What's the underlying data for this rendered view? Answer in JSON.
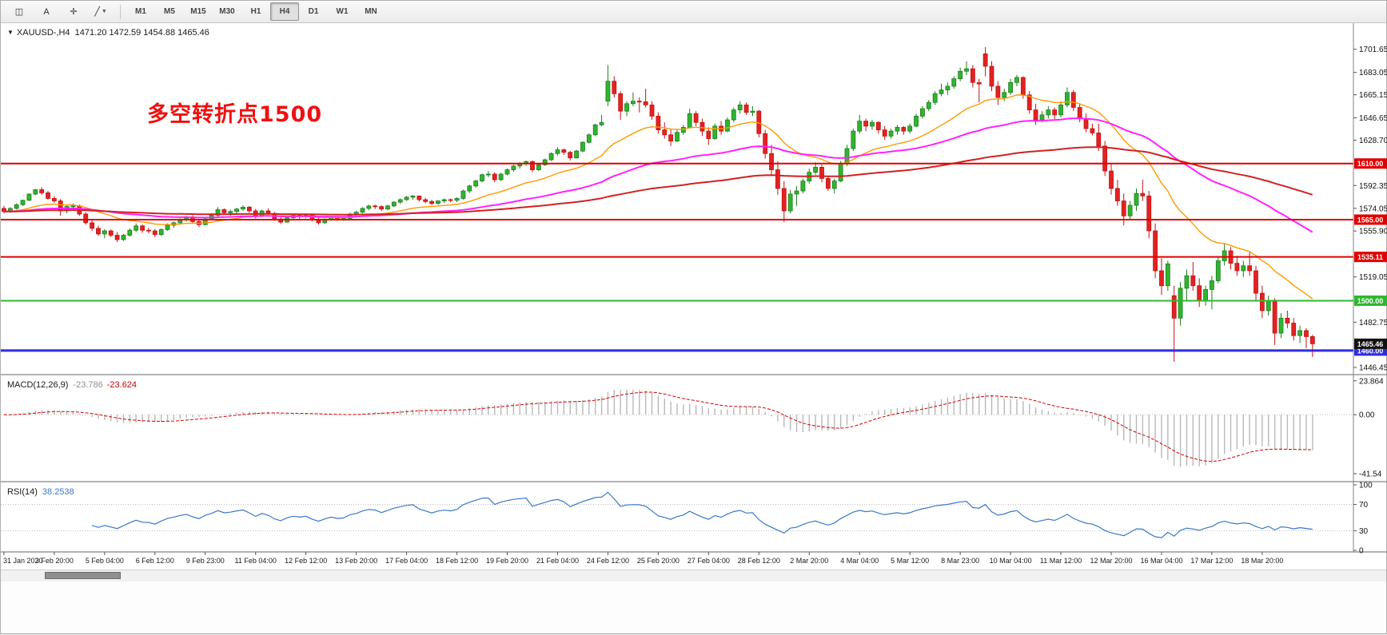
{
  "toolbar": {
    "tool_icons": [
      {
        "name": "chart-mode-icon",
        "glyph": "◫",
        "dropdown": false
      },
      {
        "name": "text-label-icon",
        "glyph": "A",
        "dropdown": false
      },
      {
        "name": "crosshair-icon",
        "glyph": "✛",
        "dropdown": false
      },
      {
        "name": "line-styles-icon",
        "glyph": "╱",
        "dropdown": true
      }
    ],
    "timeframes": [
      "M1",
      "M5",
      "M15",
      "M30",
      "H1",
      "H4",
      "D1",
      "W1",
      "MN"
    ],
    "active_timeframe": "H4"
  },
  "chart_data": {
    "type": "candlestick",
    "header": {
      "symbol": "XAUUSD-,H4",
      "ohlc": "1471.20 1472.59 1454.88 1465.46"
    },
    "annotation": {
      "text": "多空转折点1500",
      "color": "#f01010"
    },
    "ylim": [
      1442,
      1720
    ],
    "y_ticks": [
      "1701.65",
      "1683.05",
      "1665.15",
      "1646.65",
      "1628.70",
      "1592.35",
      "1574.05",
      "1555.90",
      "1519.05",
      "1482.75",
      "1446.45"
    ],
    "x_labels": [
      "31 Jan 2020",
      "3 Feb 20:00",
      "5 Feb 04:00",
      "6 Feb 12:00",
      "9 Feb 23:00",
      "11 Feb 04:00",
      "12 Feb 12:00",
      "13 Feb 20:00",
      "17 Feb 04:00",
      "18 Feb 12:00",
      "19 Feb 20:00",
      "21 Feb 04:00",
      "24 Feb 12:00",
      "25 Feb 20:00",
      "27 Feb 04:00",
      "28 Feb 12:00",
      "2 Mar 20:00",
      "4 Mar 04:00",
      "5 Mar 12:00",
      "8 Mar 23:00",
      "10 Mar 04:00",
      "11 Mar 12:00",
      "12 Mar 20:00",
      "16 Mar 04:00",
      "17 Mar 12:00",
      "18 Mar 20:00"
    ],
    "bars_per_label": 8,
    "up_color": "#2fb52f",
    "up_border": "#1e7d1e",
    "down_color": "#e32222",
    "down_border": "#c01414",
    "moving_averages": [
      {
        "name": "fast-ma",
        "period": 20,
        "color": "#ff9900",
        "width": 1.4
      },
      {
        "name": "mid-ma",
        "period": 60,
        "color": "#ff22ff",
        "width": 2
      },
      {
        "name": "slow-ma",
        "period": 150,
        "color": "#d42020",
        "width": 2
      }
    ],
    "levels": [
      {
        "price": 1610.0,
        "label": "1610.00",
        "color": "#e00000",
        "width": 2
      },
      {
        "price": 1565.0,
        "label": "1565.00",
        "color": "#e00000",
        "width": 2
      },
      {
        "price": 1535.11,
        "label": "1535.11",
        "color": "#e00000",
        "width": 2
      },
      {
        "price": 1500.0,
        "label": "1500.00",
        "color": "#2db82d",
        "width": 2
      },
      {
        "price": 1460.0,
        "label": "1460.00",
        "color": "#2d2de0",
        "width": 3
      }
    ],
    "current_price": {
      "value": 1465.46,
      "label": "1465.46",
      "badge_color": "#111111"
    },
    "indicators": [
      {
        "name": "MACD",
        "label": "MACD(12,26,9)",
        "value_main": "-23.786",
        "value_signal": "-23.624",
        "axis_labels": [
          "23.864",
          "0.00",
          "-41.54"
        ],
        "ylim": [
          -46,
          26
        ],
        "histogram_color": "#b8b8b8",
        "signal_color": "#d00000"
      },
      {
        "name": "RSI",
        "label": "RSI(14)",
        "value": "38.2538",
        "axis_labels": [
          "100",
          "70",
          "30",
          "0"
        ],
        "levels": [
          70,
          30
        ],
        "ylim": [
          0,
          100
        ],
        "line_color": "#3c78c8"
      }
    ],
    "candles": [
      [
        1574,
        1576,
        1570,
        1571.5
      ],
      [
        1571.5,
        1575,
        1570.5,
        1574
      ],
      [
        1574,
        1578,
        1573,
        1577
      ],
      [
        1577,
        1581,
        1576,
        1580.5
      ],
      [
        1580.5,
        1586,
        1580,
        1585.5
      ],
      [
        1585.5,
        1589.5,
        1584.5,
        1589
      ],
      [
        1589,
        1591,
        1585,
        1586.5
      ],
      [
        1586.5,
        1588,
        1581,
        1582
      ],
      [
        1582,
        1584,
        1578.5,
        1580
      ],
      [
        1580,
        1581.5,
        1568,
        1572
      ],
      [
        1572,
        1577,
        1570,
        1575.5
      ],
      [
        1575.5,
        1578,
        1573,
        1576
      ],
      [
        1576,
        1577,
        1568,
        1569.5
      ],
      [
        1569.5,
        1571,
        1561,
        1562.5
      ],
      [
        1562.5,
        1564.5,
        1556,
        1558
      ],
      [
        1558,
        1560,
        1552,
        1553.5
      ],
      [
        1553.5,
        1557.5,
        1550,
        1556
      ],
      [
        1556,
        1557,
        1551,
        1552.5
      ],
      [
        1552.5,
        1555,
        1547,
        1549
      ],
      [
        1549,
        1553.5,
        1548,
        1552.5
      ],
      [
        1552.5,
        1558,
        1551.5,
        1556.5
      ],
      [
        1556.5,
        1562,
        1555,
        1560
      ],
      [
        1560,
        1561,
        1554.5,
        1556.5
      ],
      [
        1556.5,
        1558.5,
        1554,
        1556
      ],
      [
        1556,
        1557.5,
        1551,
        1553
      ],
      [
        1553,
        1558,
        1552,
        1557
      ],
      [
        1557,
        1562,
        1556,
        1560.5
      ],
      [
        1560.5,
        1563.5,
        1558.5,
        1562.5
      ],
      [
        1562.5,
        1566,
        1561,
        1565
      ],
      [
        1565,
        1568,
        1563.5,
        1566.5
      ],
      [
        1566.5,
        1568.5,
        1562,
        1563.5
      ],
      [
        1563.5,
        1565,
        1559,
        1561
      ],
      [
        1561,
        1566.5,
        1560.5,
        1565.5
      ],
      [
        1565.5,
        1570,
        1564.5,
        1568.5
      ],
      [
        1568.5,
        1575,
        1567.5,
        1573
      ],
      [
        1573,
        1574,
        1569,
        1570.5
      ],
      [
        1570.5,
        1573,
        1568,
        1571.5
      ],
      [
        1571.5,
        1574.5,
        1570,
        1573.5
      ],
      [
        1573.5,
        1576.5,
        1572,
        1575
      ],
      [
        1575,
        1576,
        1570.5,
        1572
      ],
      [
        1572,
        1573.5,
        1566,
        1568
      ],
      [
        1568,
        1573,
        1567,
        1572
      ],
      [
        1572,
        1574,
        1569,
        1570
      ],
      [
        1570,
        1571,
        1564,
        1565.5
      ],
      [
        1565.5,
        1567,
        1561.5,
        1563
      ],
      [
        1563,
        1567.5,
        1562.5,
        1566.5
      ],
      [
        1566.5,
        1569.5,
        1565,
        1568.5
      ],
      [
        1568.5,
        1569.5,
        1565.5,
        1567.5
      ],
      [
        1567.5,
        1570,
        1566,
        1568.5
      ],
      [
        1568.5,
        1569,
        1563.5,
        1565
      ],
      [
        1565,
        1566.5,
        1561,
        1562.5
      ],
      [
        1562.5,
        1566,
        1561.5,
        1565
      ],
      [
        1565,
        1568,
        1564,
        1567
      ],
      [
        1567,
        1568,
        1564,
        1565.5
      ],
      [
        1565.5,
        1567,
        1564,
        1566
      ],
      [
        1566,
        1570.5,
        1565,
        1569.5
      ],
      [
        1569.5,
        1572,
        1568,
        1571
      ],
      [
        1571,
        1575,
        1570,
        1574
      ],
      [
        1574,
        1577,
        1572.5,
        1576
      ],
      [
        1576,
        1577,
        1573.5,
        1575.5
      ],
      [
        1575.5,
        1576.5,
        1572,
        1573.5
      ],
      [
        1573.5,
        1577,
        1572.5,
        1576
      ],
      [
        1576,
        1580,
        1575,
        1579
      ],
      [
        1579,
        1582,
        1577.5,
        1581
      ],
      [
        1581,
        1584,
        1580,
        1583
      ],
      [
        1583,
        1584.5,
        1581,
        1584
      ],
      [
        1584,
        1584,
        1579.5,
        1581
      ],
      [
        1581,
        1582.5,
        1578,
        1579.5
      ],
      [
        1579.5,
        1581,
        1576.5,
        1578
      ],
      [
        1578,
        1580.5,
        1577,
        1580
      ],
      [
        1580,
        1582,
        1578.5,
        1581
      ],
      [
        1581,
        1582,
        1579,
        1580.5
      ],
      [
        1580.5,
        1583,
        1579,
        1582
      ],
      [
        1582,
        1589,
        1581,
        1588
      ],
      [
        1588,
        1593,
        1586.5,
        1592
      ],
      [
        1592,
        1597,
        1590.5,
        1596
      ],
      [
        1596,
        1602,
        1595,
        1601
      ],
      [
        1601,
        1604,
        1599,
        1601.5
      ],
      [
        1601.5,
        1603,
        1595,
        1597
      ],
      [
        1597,
        1602.5,
        1596,
        1601.5
      ],
      [
        1601.5,
        1606,
        1600.5,
        1605
      ],
      [
        1605,
        1609,
        1603.5,
        1608
      ],
      [
        1608,
        1611,
        1606,
        1610
      ],
      [
        1610,
        1612.5,
        1608,
        1611.5
      ],
      [
        1611.5,
        1612.5,
        1603,
        1605
      ],
      [
        1605,
        1610,
        1604,
        1609
      ],
      [
        1609,
        1614,
        1608,
        1613
      ],
      [
        1613,
        1619,
        1612,
        1618
      ],
      [
        1618,
        1623,
        1616.5,
        1621
      ],
      [
        1621,
        1622,
        1617,
        1619
      ],
      [
        1619,
        1620,
        1612.5,
        1614.5
      ],
      [
        1614.5,
        1621,
        1614,
        1620
      ],
      [
        1620,
        1628,
        1619,
        1627
      ],
      [
        1627,
        1634,
        1626,
        1633
      ],
      [
        1633,
        1642,
        1632,
        1641
      ],
      [
        1641,
        1649,
        1640,
        1643
      ],
      [
        1660,
        1689,
        1656,
        1676
      ],
      [
        1676,
        1680,
        1663,
        1666
      ],
      [
        1666,
        1668,
        1645,
        1652
      ],
      [
        1652,
        1660,
        1648,
        1658
      ],
      [
        1658,
        1667,
        1656,
        1660
      ],
      [
        1660,
        1663,
        1651,
        1659.5
      ],
      [
        1659.5,
        1670,
        1655,
        1657
      ],
      [
        1657,
        1660,
        1645,
        1648
      ],
      [
        1648,
        1651,
        1634,
        1637
      ],
      [
        1637,
        1643,
        1630,
        1633
      ],
      [
        1633,
        1638,
        1624,
        1628
      ],
      [
        1628,
        1637,
        1627,
        1635
      ],
      [
        1635,
        1641,
        1633,
        1639
      ],
      [
        1639,
        1654,
        1638,
        1650
      ],
      [
        1650,
        1652,
        1640,
        1643
      ],
      [
        1643,
        1646,
        1632,
        1636
      ],
      [
        1636,
        1639,
        1625,
        1630
      ],
      [
        1630,
        1642,
        1629,
        1640
      ],
      [
        1640,
        1644,
        1633,
        1636
      ],
      [
        1636,
        1647,
        1635,
        1645
      ],
      [
        1645,
        1655,
        1643,
        1653
      ],
      [
        1653,
        1660,
        1650,
        1657
      ],
      [
        1657,
        1659,
        1649,
        1651
      ],
      [
        1651,
        1656,
        1648,
        1652
      ],
      [
        1652,
        1653,
        1631,
        1634
      ],
      [
        1634,
        1637,
        1614,
        1618
      ],
      [
        1618,
        1625,
        1600,
        1605
      ],
      [
        1605,
        1612,
        1585,
        1590
      ],
      [
        1590,
        1596,
        1563,
        1572
      ],
      [
        1572,
        1589,
        1570,
        1585.5
      ],
      [
        1585.5,
        1592,
        1576,
        1588
      ],
      [
        1588,
        1598,
        1586,
        1596
      ],
      [
        1596,
        1606,
        1594,
        1603
      ],
      [
        1603,
        1611,
        1601,
        1607
      ],
      [
        1607,
        1609,
        1595,
        1598
      ],
      [
        1598,
        1600,
        1588,
        1590
      ],
      [
        1590,
        1598,
        1586,
        1596
      ],
      [
        1596,
        1612,
        1595,
        1610
      ],
      [
        1610,
        1625,
        1608,
        1622
      ],
      [
        1622,
        1638,
        1620,
        1636
      ],
      [
        1636,
        1649,
        1634,
        1644
      ],
      [
        1644,
        1646,
        1636,
        1640
      ],
      [
        1640,
        1645,
        1637,
        1643
      ],
      [
        1643,
        1644,
        1634,
        1637
      ],
      [
        1637,
        1640,
        1629,
        1632
      ],
      [
        1632,
        1638,
        1630,
        1636
      ],
      [
        1636,
        1641,
        1633,
        1639
      ],
      [
        1639,
        1640,
        1633,
        1636
      ],
      [
        1636,
        1642,
        1634,
        1640
      ],
      [
        1640,
        1650,
        1639,
        1648
      ],
      [
        1648,
        1656,
        1646,
        1654
      ],
      [
        1654,
        1661,
        1652,
        1659
      ],
      [
        1659,
        1668,
        1657,
        1666
      ],
      [
        1666,
        1674,
        1664,
        1669
      ],
      [
        1669,
        1675,
        1665,
        1672
      ],
      [
        1672,
        1680,
        1670,
        1678
      ],
      [
        1678,
        1687,
        1676,
        1684
      ],
      [
        1684,
        1692,
        1681,
        1686
      ],
      [
        1686,
        1689,
        1671,
        1675
      ],
      [
        1675,
        1678,
        1659,
        1673.8
      ],
      [
        1698,
        1703.3,
        1680,
        1688
      ],
      [
        1688,
        1692,
        1668,
        1672
      ],
      [
        1672,
        1676,
        1657,
        1663
      ],
      [
        1663,
        1670,
        1660,
        1667
      ],
      [
        1667,
        1678,
        1665,
        1675
      ],
      [
        1675,
        1681,
        1672,
        1679
      ],
      [
        1679,
        1680,
        1662,
        1665
      ],
      [
        1665,
        1668,
        1650,
        1653
      ],
      [
        1653,
        1658,
        1641,
        1645
      ],
      [
        1645,
        1652,
        1643,
        1649
      ],
      [
        1649,
        1656,
        1646,
        1653
      ],
      [
        1653,
        1655,
        1645,
        1649
      ],
      [
        1649,
        1660,
        1647,
        1657
      ],
      [
        1657,
        1671,
        1655,
        1667
      ],
      [
        1667,
        1669,
        1652,
        1655
      ],
      [
        1655,
        1658,
        1643,
        1646
      ],
      [
        1646,
        1650,
        1635,
        1638
      ],
      [
        1638,
        1642,
        1632.5,
        1634.5
      ],
      [
        1634.5,
        1642,
        1620,
        1624
      ],
      [
        1624,
        1628,
        1600,
        1604
      ],
      [
        1604,
        1610,
        1585,
        1590
      ],
      [
        1590,
        1597,
        1576,
        1580
      ],
      [
        1580,
        1586,
        1560.5,
        1568
      ],
      [
        1568,
        1580,
        1565,
        1576.5
      ],
      [
        1576.5,
        1590,
        1572,
        1586
      ],
      [
        1586,
        1597,
        1580,
        1584
      ],
      [
        1584,
        1588,
        1550,
        1556
      ],
      [
        1556,
        1562,
        1518,
        1524
      ],
      [
        1524,
        1534,
        1504.5,
        1512
      ],
      [
        1512,
        1532,
        1508,
        1529.5
      ],
      [
        1504,
        1512,
        1451,
        1486
      ],
      [
        1486,
        1515,
        1480,
        1510
      ],
      [
        1510,
        1525,
        1500,
        1520
      ],
      [
        1520,
        1531,
        1508,
        1512
      ],
      [
        1512,
        1518,
        1495,
        1500
      ],
      [
        1500,
        1512,
        1496,
        1509
      ],
      [
        1509,
        1520,
        1493,
        1516
      ],
      [
        1516,
        1535,
        1514,
        1532
      ],
      [
        1532,
        1546,
        1528,
        1540
      ],
      [
        1540,
        1543,
        1525,
        1530
      ],
      [
        1530,
        1536,
        1520,
        1524
      ],
      [
        1524,
        1532,
        1519,
        1528
      ],
      [
        1528,
        1539,
        1520,
        1524
      ],
      [
        1524,
        1528,
        1500,
        1506
      ],
      [
        1506,
        1512,
        1486,
        1492
      ],
      [
        1492,
        1504,
        1488,
        1500
      ],
      [
        1500,
        1502,
        1464.5,
        1474
      ],
      [
        1474,
        1490,
        1470,
        1486
      ],
      [
        1486,
        1492,
        1478,
        1482
      ],
      [
        1482,
        1486,
        1468,
        1472
      ],
      [
        1472,
        1480,
        1466,
        1476
      ],
      [
        1476,
        1478,
        1462,
        1471.2
      ],
      [
        1471.2,
        1472.59,
        1454.88,
        1465.46
      ]
    ]
  }
}
